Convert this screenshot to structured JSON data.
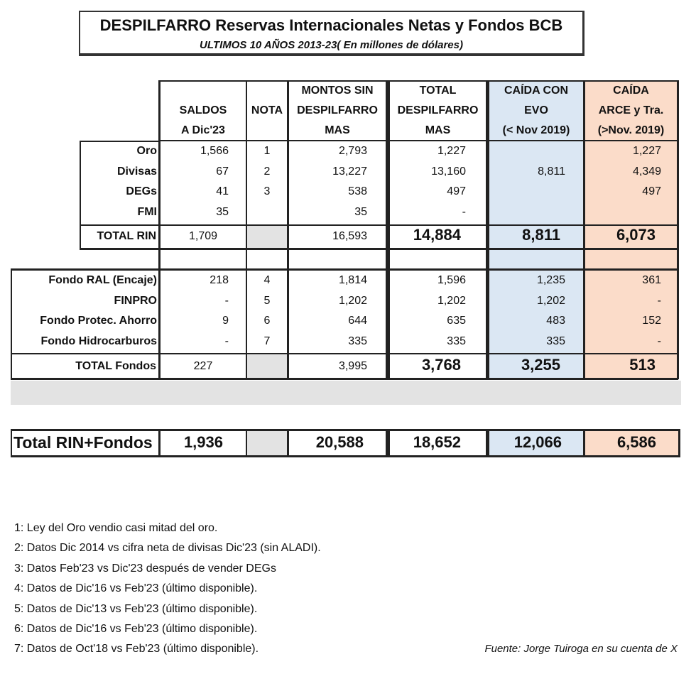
{
  "title": "DESPILFARRO Reservas Internacionales Netas y Fondos BCB",
  "subtitle": "ULTIMOS 10 AÑOS 2013-23( En millones de dólares)",
  "headers": {
    "saldos": [
      "",
      "SALDOS",
      "A Dic'23"
    ],
    "nota": [
      "",
      "NOTA",
      ""
    ],
    "montos": [
      "MONTOS SIN",
      "DESPILFARRO",
      "MAS"
    ],
    "total": [
      "TOTAL",
      "DESPILFARRO",
      "MAS"
    ],
    "evo": [
      "CAÍDA CON",
      "EVO",
      "(< Nov 2019)"
    ],
    "arce": [
      "CAÍDA",
      "ARCE y Tra.",
      "(>Nov. 2019)"
    ]
  },
  "rin_rows": [
    {
      "label": "Oro",
      "saldos": "1,566",
      "nota": "1",
      "montos": "2,793",
      "total": "1,227",
      "evo": "",
      "arce": "1,227"
    },
    {
      "label": "Divisas",
      "saldos": "67",
      "nota": "2",
      "montos": "13,227",
      "total": "13,160",
      "evo": "8,811",
      "arce": "4,349"
    },
    {
      "label": "DEGs",
      "saldos": "41",
      "nota": "3",
      "montos": "538",
      "total": "497",
      "evo": "",
      "arce": "497"
    },
    {
      "label": "FMI",
      "saldos": "35",
      "nota": "",
      "montos": "35",
      "total": "-",
      "evo": "",
      "arce": ""
    }
  ],
  "total_rin": {
    "label": "TOTAL RIN",
    "saldos": "1,709",
    "montos": "16,593",
    "total": "14,884",
    "evo": "8,811",
    "arce": "6,073"
  },
  "fondos_rows": [
    {
      "label": "Fondo RAL (Encaje)",
      "saldos": "218",
      "nota": "4",
      "montos": "1,814",
      "total": "1,596",
      "evo": "1,235",
      "arce": "361"
    },
    {
      "label": "FINPRO",
      "saldos": "-",
      "nota": "5",
      "montos": "1,202",
      "total": "1,202",
      "evo": "1,202",
      "arce": "-"
    },
    {
      "label": "Fondo Protec. Ahorro",
      "saldos": "9",
      "nota": "6",
      "montos": "644",
      "total": "635",
      "evo": "483",
      "arce": "152"
    },
    {
      "label": "Fondo Hidrocarburos",
      "saldos": "-",
      "nota": "7",
      "montos": "335",
      "total": "335",
      "evo": "335",
      "arce": "-"
    }
  ],
  "total_fondos": {
    "label": "TOTAL Fondos",
    "saldos": "227",
    "montos": "3,995",
    "total": "3,768",
    "evo": "3,255",
    "arce": "513"
  },
  "grand_total": {
    "label": "Total RIN+Fondos",
    "saldos": "1,936",
    "montos": "20,588",
    "total": "18,652",
    "evo": "12,066",
    "arce": "6,586"
  },
  "notes": [
    "1: Ley del Oro vendio casi mitad del oro.",
    "2: Datos Dic 2014 vs cifra neta de divisas Dic'23 (sin ALADI).",
    "3: Datos Feb'23 vs Dic'23 después de vender DEGs",
    "4: Datos de Dic'16 vs Feb'23 (último disponible).",
    "5: Datos de Dic'13 vs Feb'23 (último disponible).",
    "6: Datos de Dic'16 vs Feb'23 (último disponible).",
    "7: Datos de Oct'18 vs Feb'23 (último disponible)."
  ],
  "source": "Fuente: Jorge Tuiroga en  su cuenta de X",
  "colors": {
    "evo_fill": "#dbe7f3",
    "arce_fill": "#fbdcc9",
    "gray_fill": "#e3e3e3"
  }
}
